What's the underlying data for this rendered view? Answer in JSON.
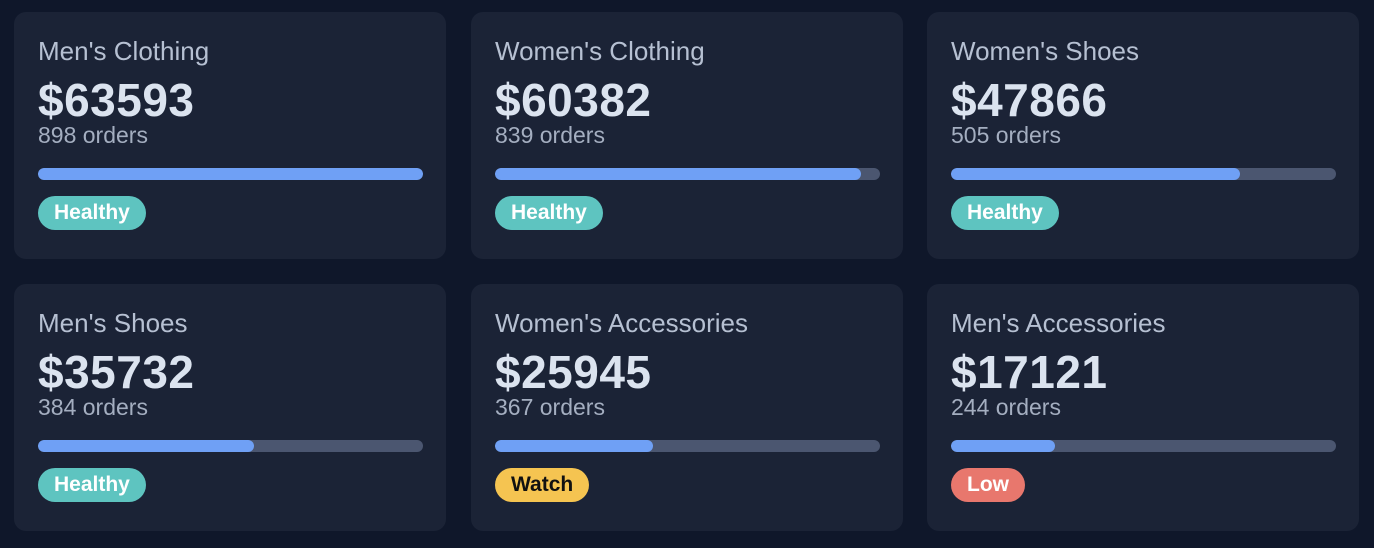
{
  "cards": [
    {
      "title": "Men's Clothing",
      "value": "$63593",
      "orders": "898 orders",
      "fill_fraction": 1.0,
      "status": "Healthy",
      "status_kind": "healthy"
    },
    {
      "title": "Women's Clothing",
      "value": "$60382",
      "orders": "839 orders",
      "fill_fraction": 0.95,
      "status": "Healthy",
      "status_kind": "healthy"
    },
    {
      "title": "Women's Shoes",
      "value": "$47866",
      "orders": "505 orders",
      "fill_fraction": 0.75,
      "status": "Healthy",
      "status_kind": "healthy"
    },
    {
      "title": "Men's Shoes",
      "value": "$35732",
      "orders": "384 orders",
      "fill_fraction": 0.56,
      "status": "Healthy",
      "status_kind": "healthy"
    },
    {
      "title": "Women's Accessories",
      "value": "$25945",
      "orders": "367 orders",
      "fill_fraction": 0.41,
      "status": "Watch",
      "status_kind": "watch"
    },
    {
      "title": "Men's Accessories",
      "value": "$17121",
      "orders": "244 orders",
      "fill_fraction": 0.27,
      "status": "Low",
      "status_kind": "low"
    }
  ],
  "colors": {
    "background": "#0f172a",
    "card": "#1b2336",
    "bar_fill": "#6fa0f5",
    "bar_track": "#4b5670",
    "healthy": "#5ec4c0",
    "watch": "#f5c451",
    "low": "#e8776d"
  }
}
